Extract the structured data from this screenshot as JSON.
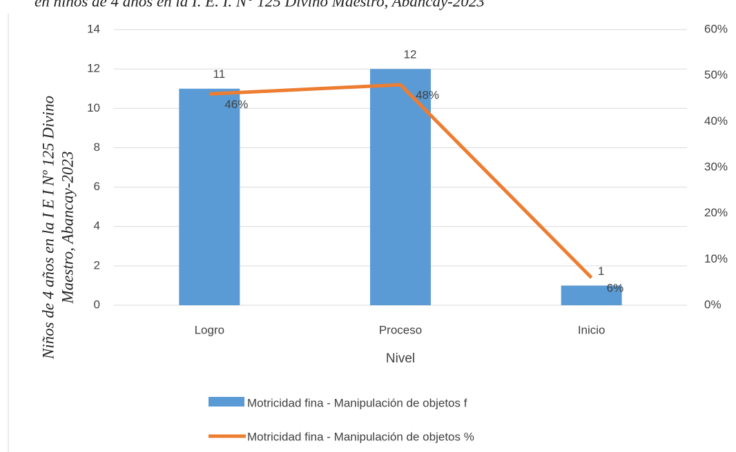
{
  "chart_data": {
    "type": "bar",
    "title": "en niños de 4 años en la I. E. I. N° 125 Divino Maestro, Abancay-2023",
    "ylabel": [
      "Niños de 4 años en la I E I Nº 125 Divino",
      "Maestro, Abancay-2023"
    ],
    "xlabel": "Nivel",
    "categories": [
      "Logro",
      "Proceso",
      "Inicio"
    ],
    "series": [
      {
        "name": "Motricidad fina - Manipulación de objetos  f",
        "color": "#5b9bd5",
        "type": "bar",
        "values": [
          11,
          12,
          1
        ]
      },
      {
        "name": "Motricidad fina - Manipulación de objetos  %",
        "color": "#ed7d31",
        "type": "line",
        "axis": "y2",
        "values": [
          46,
          48,
          6
        ],
        "value_labels": [
          "46%",
          "48%",
          "6%"
        ]
      }
    ],
    "ylim": [
      0,
      14
    ],
    "yticks": [
      0,
      2,
      4,
      6,
      8,
      10,
      12,
      14
    ],
    "y2lim": [
      0,
      60
    ],
    "y2ticks": [
      {
        "value": 0,
        "label": "0%"
      },
      {
        "value": 10,
        "label": "10%"
      },
      {
        "value": 20,
        "label": "20%"
      },
      {
        "value": 30,
        "label": "30%"
      },
      {
        "value": 40,
        "label": "40%"
      },
      {
        "value": 50,
        "label": "50%"
      },
      {
        "value": 60,
        "label": "60%"
      }
    ],
    "grid": true,
    "legend": "bottom"
  }
}
